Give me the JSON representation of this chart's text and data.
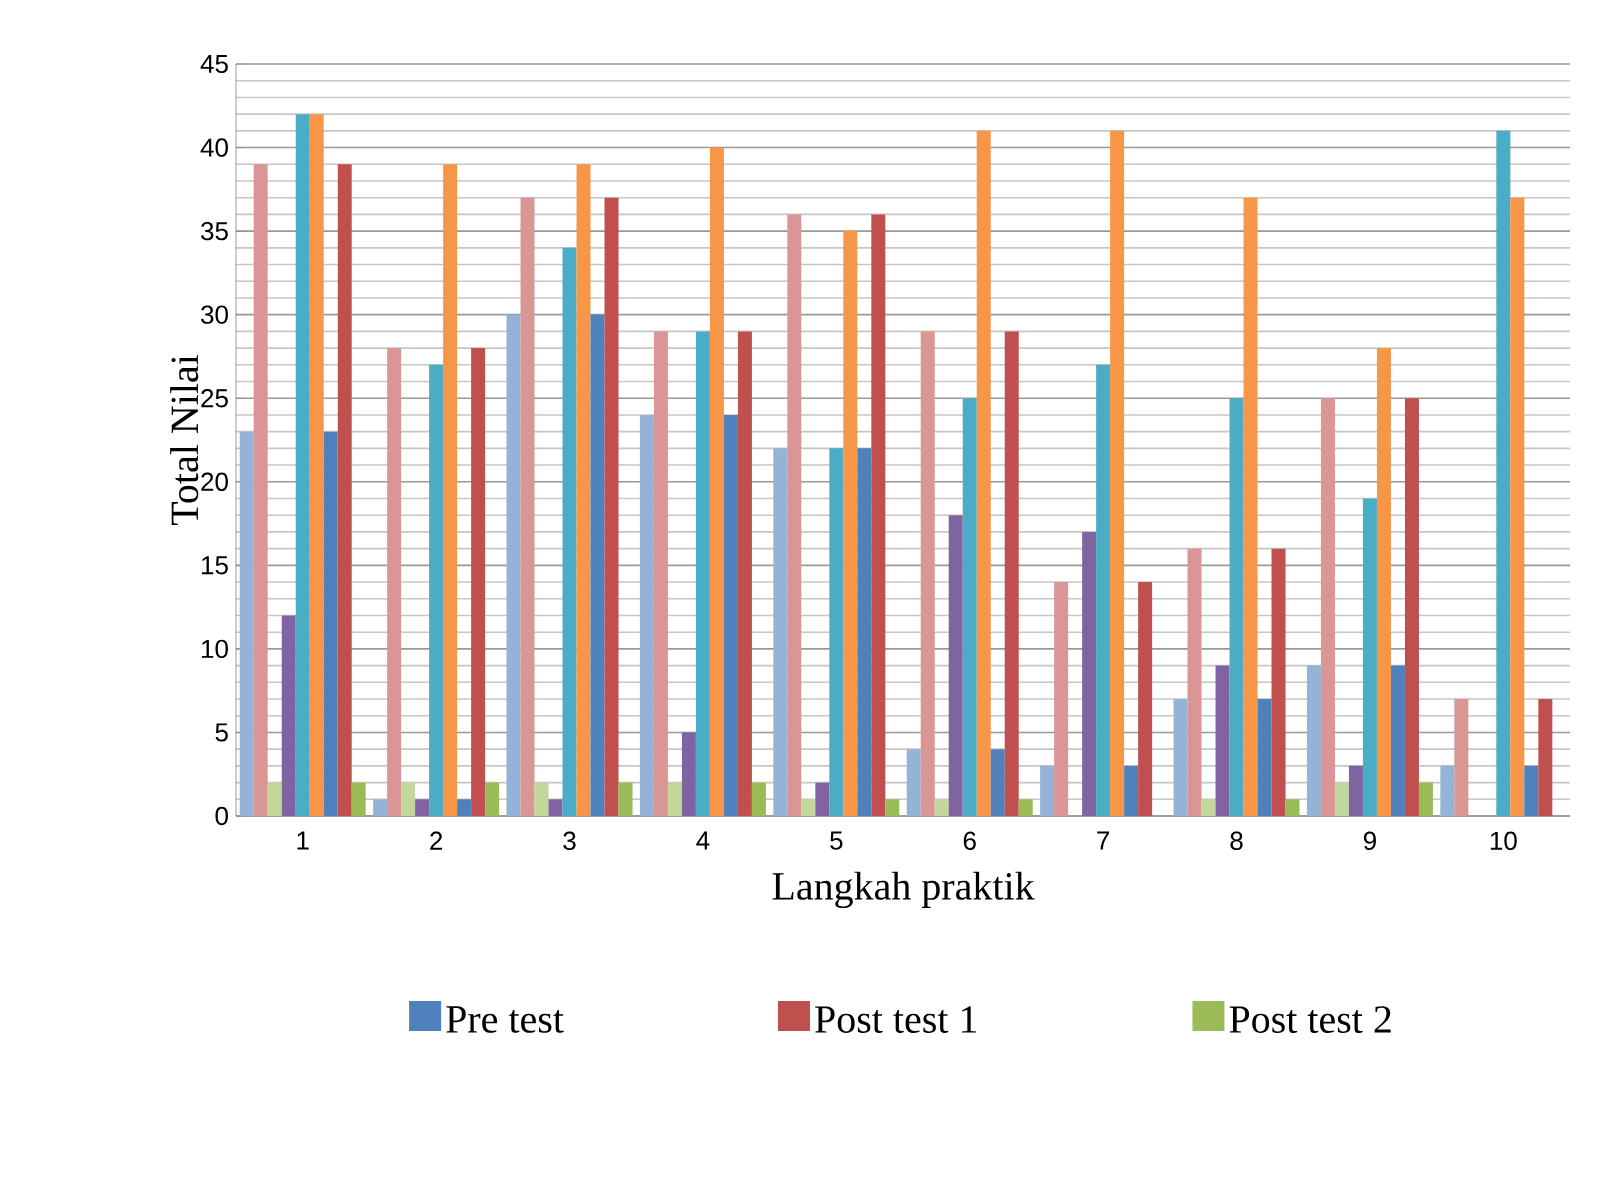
{
  "chart_data": {
    "type": "bar",
    "xlabel": "Langkah praktik",
    "ylabel": "Total Nilai",
    "categories": [
      "1",
      "2",
      "3",
      "4",
      "5",
      "6",
      "7",
      "8",
      "9",
      "10"
    ],
    "series": [
      {
        "color": "#95b3d7",
        "values": [
          23,
          1,
          30,
          24,
          22,
          4,
          3,
          7,
          9,
          3
        ]
      },
      {
        "color": "#d99694",
        "values": [
          39,
          28,
          37,
          29,
          36,
          29,
          14,
          16,
          25,
          7
        ]
      },
      {
        "color": "#c3d69b",
        "values": [
          2,
          2,
          2,
          2,
          1,
          1,
          0,
          1,
          2,
          0
        ]
      },
      {
        "color": "#8064a2",
        "values": [
          12,
          1,
          1,
          5,
          2,
          18,
          17,
          9,
          3,
          0
        ]
      },
      {
        "color": "#4bacc6",
        "values": [
          42,
          27,
          34,
          29,
          22,
          25,
          27,
          25,
          19,
          41
        ]
      },
      {
        "color": "#f79646",
        "values": [
          42,
          39,
          39,
          40,
          35,
          41,
          41,
          37,
          28,
          37
        ]
      },
      {
        "name": "Pre test",
        "color": "#4f81bd",
        "values": [
          23,
          1,
          30,
          24,
          22,
          4,
          3,
          7,
          9,
          3
        ]
      },
      {
        "name": "Post test 1",
        "color": "#c0504d",
        "values": [
          39,
          28,
          37,
          29,
          36,
          29,
          14,
          16,
          25,
          7
        ]
      },
      {
        "name": "Post test 2",
        "color": "#9bbb59",
        "values": [
          2,
          2,
          2,
          2,
          1,
          1,
          0,
          1,
          2,
          0
        ]
      }
    ],
    "ylim": [
      0,
      45
    ],
    "yticks": [
      0,
      5,
      10,
      15,
      20,
      25,
      30,
      35,
      40,
      45
    ],
    "grid": "y",
    "legend": "bottom"
  }
}
